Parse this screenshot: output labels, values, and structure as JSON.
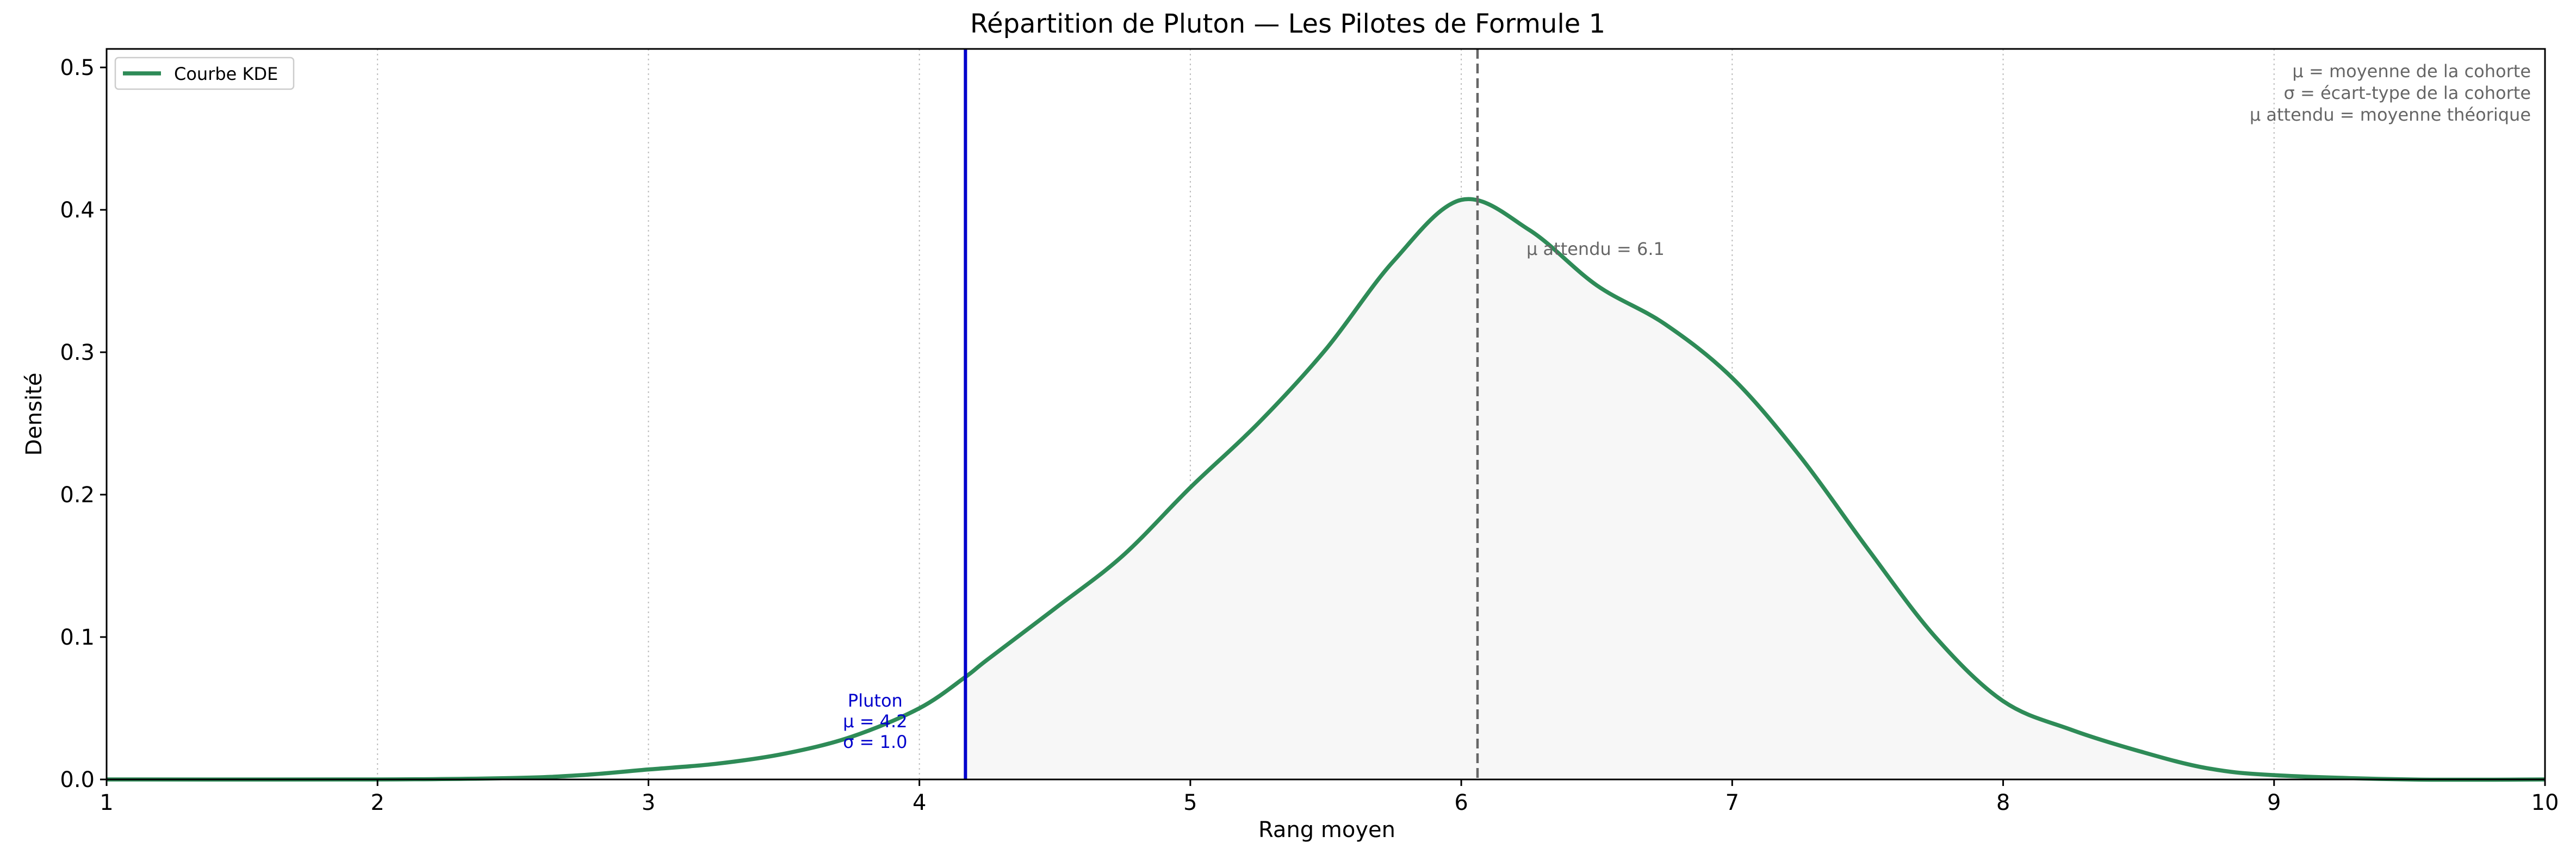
{
  "chart_data": {
    "type": "line",
    "title": "Répartition de Pluton — Les Pilotes de Formule 1",
    "xlabel": "Rang moyen",
    "ylabel": "Densité",
    "xlim": [
      1,
      10
    ],
    "ylim": [
      0,
      0.513
    ],
    "x_ticks": [
      1,
      2,
      3,
      4,
      5,
      6,
      7,
      8,
      9,
      10
    ],
    "x_tick_labels": [
      "1",
      "2",
      "3",
      "4",
      "5",
      "6",
      "7",
      "8",
      "9",
      "10"
    ],
    "y_ticks": [
      0.0,
      0.1,
      0.2,
      0.3,
      0.4,
      0.5
    ],
    "y_tick_labels": [
      "0.0",
      "0.1",
      "0.2",
      "0.3",
      "0.4",
      "0.5"
    ],
    "grid": "x-dotted",
    "legend": {
      "placement": "top-left",
      "entries": [
        {
          "label": "Courbe KDE",
          "color": "#2e8b57"
        }
      ]
    },
    "series": [
      {
        "name": "Courbe KDE",
        "color": "#2e8b57",
        "fill": "#f7f7f7",
        "fill_from": 4.17,
        "points": [
          [
            1.0,
            0.0
          ],
          [
            2.0,
            0.0
          ],
          [
            2.5,
            0.001
          ],
          [
            2.75,
            0.003
          ],
          [
            3.0,
            0.007
          ],
          [
            3.25,
            0.011
          ],
          [
            3.5,
            0.018
          ],
          [
            3.75,
            0.03
          ],
          [
            4.0,
            0.05
          ],
          [
            4.17,
            0.072
          ],
          [
            4.25,
            0.084
          ],
          [
            4.5,
            0.12
          ],
          [
            4.75,
            0.157
          ],
          [
            5.0,
            0.205
          ],
          [
            5.25,
            0.25
          ],
          [
            5.5,
            0.302
          ],
          [
            5.75,
            0.364
          ],
          [
            6.0,
            0.407
          ],
          [
            6.25,
            0.386
          ],
          [
            6.5,
            0.347
          ],
          [
            6.75,
            0.32
          ],
          [
            7.0,
            0.282
          ],
          [
            7.25,
            0.227
          ],
          [
            7.5,
            0.162
          ],
          [
            7.75,
            0.1
          ],
          [
            8.0,
            0.055
          ],
          [
            8.25,
            0.035
          ],
          [
            8.5,
            0.02
          ],
          [
            8.75,
            0.008
          ],
          [
            9.0,
            0.003
          ],
          [
            9.5,
            0.0
          ],
          [
            10.0,
            0.0
          ]
        ]
      }
    ],
    "vlines": [
      {
        "x": 4.17,
        "color": "#0000cc",
        "style": "solid",
        "labels": [
          "Pluton",
          "μ = 4.2",
          "σ = 1.0"
        ]
      },
      {
        "x": 6.06,
        "color": "#666666",
        "style": "dashed",
        "label": "μ attendu = 6.1",
        "label_y": 0.373
      }
    ],
    "annotations": [
      "μ = moyenne de la cohorte",
      "σ = écart-type de la cohorte",
      "μ attendu = moyenne théorique"
    ]
  }
}
